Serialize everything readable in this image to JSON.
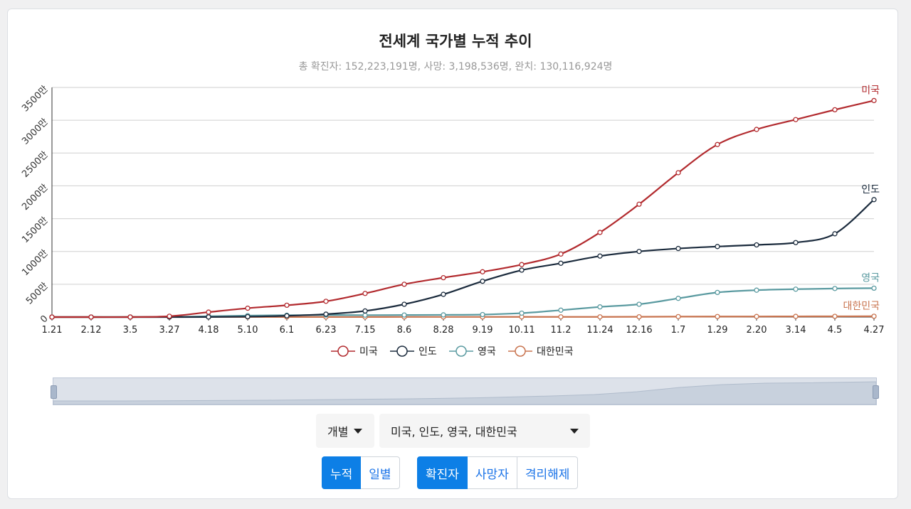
{
  "title": "전세계 국가별 누적 추이",
  "subtitle": "총 확진자: 152,223,191명, 사망: 3,198,536명, 완치: 130,116,924명",
  "controls": {
    "mode_label": "개별",
    "countries_label": "미국, 인도, 영국, 대한민국",
    "view_buttons": [
      "누적",
      "일별"
    ],
    "metric_buttons": [
      "확진자",
      "사망자",
      "격리해제"
    ],
    "active_view": "누적",
    "active_metric": "확진자"
  },
  "chart_data": {
    "type": "line",
    "categories": [
      "1.21",
      "2.12",
      "3.5",
      "3.27",
      "4.18",
      "5.10",
      "6.1",
      "6.23",
      "7.15",
      "8.6",
      "8.28",
      "9.19",
      "10.11",
      "11.2",
      "11.24",
      "12.16",
      "1.7",
      "1.29",
      "2.20",
      "3.14",
      "4.5",
      "4.27"
    ],
    "y_unit": "만",
    "ylim": [
      0,
      3500
    ],
    "yticks": [
      0,
      500,
      1000,
      1500,
      2000,
      2500,
      3000,
      3500
    ],
    "ytick_labels": [
      "0",
      "500만",
      "1000만",
      "1500만",
      "2000만",
      "2500만",
      "3000만",
      "3500만"
    ],
    "grid": true,
    "legend_position": "bottom",
    "series": [
      {
        "name": "미국",
        "color": "#b22a2e",
        "values": [
          0,
          0,
          0,
          12,
          75,
          135,
          180,
          240,
          360,
          500,
          600,
          690,
          800,
          960,
          1290,
          1720,
          2200,
          2630,
          2860,
          3010,
          3160,
          3300
        ]
      },
      {
        "name": "인도",
        "color": "#1b2b3d",
        "values": [
          0,
          0,
          0,
          0,
          1,
          6,
          19,
          44,
          93,
          195,
          346,
          546,
          715,
          820,
          930,
          1000,
          1045,
          1075,
          1100,
          1135,
          1270,
          1790
        ]
      },
      {
        "name": "영국",
        "color": "#5a9aa0",
        "values": [
          0,
          0,
          0,
          1,
          12,
          22,
          28,
          31,
          29,
          31,
          33,
          38,
          60,
          105,
          155,
          195,
          285,
          375,
          410,
          425,
          435,
          440
        ]
      },
      {
        "name": "대한민국",
        "color": "#c8734e",
        "values": [
          0,
          0,
          1,
          1,
          1,
          1,
          1,
          1,
          1,
          2,
          2,
          2,
          3,
          3,
          3,
          4,
          7,
          8,
          9,
          10,
          11,
          12
        ]
      }
    ]
  }
}
